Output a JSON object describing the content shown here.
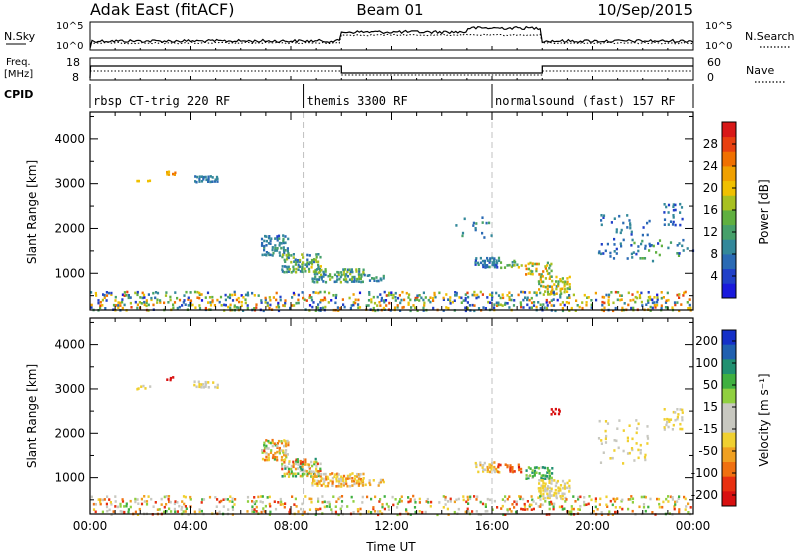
{
  "header": {
    "station": "Adak East (fitACF)",
    "beam": "Beam 01",
    "date": "10/Sep/2015"
  },
  "strip_panels": {
    "nsky": {
      "label": "N.Sky",
      "left_ticks": [
        "10^5",
        "10^0"
      ],
      "right_label": "N.Search",
      "right_ticks": [
        "10^5",
        "10^0"
      ]
    },
    "freq": {
      "label_line1": "Freq.",
      "label_line2": "[MHz]",
      "left_ticks": [
        "18",
        "8"
      ],
      "right_label": "Nave",
      "right_ticks": [
        "60",
        "0"
      ]
    },
    "cpid": {
      "label": "CPID",
      "segments": [
        {
          "start_hour": 0.0,
          "end_hour": 8.5,
          "label": "rbsp CT-trig 220 RF"
        },
        {
          "start_hour": 8.5,
          "end_hour": 16.0,
          "label": "themis 3300 RF"
        },
        {
          "start_hour": 16.0,
          "end_hour": 24.0,
          "label": "normalsound (fast) 157 RF"
        }
      ]
    }
  },
  "chart_data": [
    {
      "type": "heatmap",
      "name": "power",
      "ylabel": "Slant Range [km]",
      "xlim": [
        0,
        24
      ],
      "ylim": [
        180,
        4600
      ],
      "yticks": [
        "1000",
        "2000",
        "3000",
        "4000"
      ],
      "colorbar": {
        "label": "Power [dB]",
        "range": [
          0,
          32
        ],
        "ticks": [
          "4",
          "8",
          "12",
          "16",
          "20",
          "24",
          "28"
        ],
        "colors": [
          "#1a1adc",
          "#2040c8",
          "#2a6ab4",
          "#33889a",
          "#46a06a",
          "#60b040",
          "#a8c020",
          "#f0c000",
          "#f0a000",
          "#f07000",
          "#e84010",
          "#d81818"
        ]
      },
      "scatter_regions": [
        {
          "t0": 1.8,
          "t1": 2.4,
          "r0": 3020,
          "r1": 3120,
          "values": [
            18,
            21
          ],
          "density": 0.35
        },
        {
          "t0": 3.0,
          "t1": 3.4,
          "r0": 3220,
          "r1": 3320,
          "values": [
            21,
            25
          ],
          "density": 0.55
        },
        {
          "t0": 4.1,
          "t1": 5.1,
          "r0": 3060,
          "r1": 3220,
          "values": [
            6,
            10
          ],
          "density": 0.6
        },
        {
          "t0": 6.8,
          "t1": 7.9,
          "r0": 1420,
          "r1": 1900,
          "values": [
            5,
            12
          ],
          "density": 0.55
        },
        {
          "t0": 7.6,
          "t1": 9.2,
          "r0": 1050,
          "r1": 1480,
          "values": [
            6,
            19
          ],
          "density": 0.6
        },
        {
          "t0": 8.8,
          "t1": 10.9,
          "r0": 830,
          "r1": 1150,
          "values": [
            6,
            18
          ],
          "density": 0.65
        },
        {
          "t0": 10.8,
          "t1": 11.7,
          "r0": 850,
          "r1": 1020,
          "values": [
            5,
            12
          ],
          "density": 0.45
        },
        {
          "t0": 15.3,
          "t1": 16.3,
          "r0": 1150,
          "r1": 1400,
          "values": [
            4,
            11
          ],
          "density": 0.55
        },
        {
          "t0": 16.2,
          "t1": 17.2,
          "r0": 1150,
          "r1": 1350,
          "values": [
            8,
            20
          ],
          "density": 0.45
        },
        {
          "t0": 17.3,
          "t1": 18.4,
          "r0": 1000,
          "r1": 1290,
          "values": [
            12,
            26
          ],
          "density": 0.55
        },
        {
          "t0": 17.8,
          "t1": 19.1,
          "r0": 550,
          "r1": 1000,
          "values": [
            10,
            24
          ],
          "density": 0.55
        },
        {
          "t0": 20.2,
          "t1": 22.3,
          "r0": 1350,
          "r1": 2350,
          "values": [
            4,
            10
          ],
          "density": 0.12
        },
        {
          "t0": 22.8,
          "t1": 23.6,
          "r0": 2100,
          "r1": 2600,
          "values": [
            4,
            10
          ],
          "density": 0.3
        },
        {
          "t0": 21.5,
          "t1": 24.0,
          "r0": 1300,
          "r1": 1800,
          "values": [
            4,
            16
          ],
          "density": 0.12
        },
        {
          "t0": 14.5,
          "t1": 16.0,
          "r0": 1800,
          "r1": 2300,
          "values": [
            6,
            12
          ],
          "density": 0.08
        },
        {
          "t0": 0.0,
          "t1": 24.0,
          "r0": 190,
          "r1": 640,
          "values": [
            2,
            28
          ],
          "density": 0.28
        }
      ]
    },
    {
      "type": "heatmap",
      "name": "velocity",
      "xlabel": "Time UT",
      "ylabel": "Slant Range [km]",
      "xlim": [
        0,
        24
      ],
      "ylim": [
        180,
        4600
      ],
      "xticks": [
        "00:00",
        "04:00",
        "08:00",
        "12:00",
        "16:00",
        "20:00",
        "00:00"
      ],
      "yticks": [
        "1000",
        "2000",
        "3000",
        "4000"
      ],
      "colorbar": {
        "label": "Velocity [m s⁻¹]",
        "ticks": [
          "200",
          "100",
          "50",
          "15",
          "-15",
          "-50",
          "-100",
          "-200"
        ],
        "colors": [
          "#1530c8",
          "#2060b0",
          "#209070",
          "#40b040",
          "#90d040",
          "#c8c8c0",
          "#c8c8c0",
          "#f0d030",
          "#f0a020",
          "#f07010",
          "#e83010",
          "#d81010"
        ]
      },
      "scatter_regions": [
        {
          "t0": 1.8,
          "t1": 2.4,
          "r0": 3020,
          "r1": 3120,
          "values": [
            -10,
            10
          ],
          "density": 0.35
        },
        {
          "t0": 3.0,
          "t1": 3.4,
          "r0": 3220,
          "r1": 3320,
          "values": [
            -180,
            -120
          ],
          "density": 0.55
        },
        {
          "t0": 4.1,
          "t1": 5.1,
          "r0": 3060,
          "r1": 3220,
          "values": [
            -10,
            10
          ],
          "density": 0.6
        },
        {
          "t0": 6.8,
          "t1": 7.9,
          "r0": 1420,
          "r1": 1900,
          "values": [
            -60,
            60
          ],
          "density": 0.55
        },
        {
          "t0": 7.6,
          "t1": 9.2,
          "r0": 1050,
          "r1": 1480,
          "values": [
            -60,
            80
          ],
          "density": 0.6
        },
        {
          "t0": 8.8,
          "t1": 10.9,
          "r0": 830,
          "r1": 1150,
          "values": [
            -40,
            10
          ],
          "density": 0.65
        },
        {
          "t0": 10.8,
          "t1": 11.7,
          "r0": 850,
          "r1": 1020,
          "values": [
            -30,
            10
          ],
          "density": 0.45
        },
        {
          "t0": 15.3,
          "t1": 16.3,
          "r0": 1150,
          "r1": 1400,
          "values": [
            -30,
            20
          ],
          "density": 0.55
        },
        {
          "t0": 16.2,
          "t1": 17.2,
          "r0": 1150,
          "r1": 1350,
          "values": [
            -80,
            -30
          ],
          "density": 0.45
        },
        {
          "t0": 17.3,
          "t1": 18.4,
          "r0": 1000,
          "r1": 1290,
          "values": [
            20,
            90
          ],
          "density": 0.55
        },
        {
          "t0": 17.8,
          "t1": 19.1,
          "r0": 550,
          "r1": 1000,
          "values": [
            -10,
            10
          ],
          "density": 0.55
        },
        {
          "t0": 18.3,
          "t1": 18.7,
          "r0": 2450,
          "r1": 2600,
          "values": [
            -180,
            -120
          ],
          "density": 0.4
        },
        {
          "t0": 20.2,
          "t1": 22.3,
          "r0": 1350,
          "r1": 2350,
          "values": [
            -10,
            10
          ],
          "density": 0.12
        },
        {
          "t0": 22.8,
          "t1": 23.6,
          "r0": 2100,
          "r1": 2600,
          "values": [
            -10,
            10
          ],
          "density": 0.3
        },
        {
          "t0": 0.0,
          "t1": 24.0,
          "r0": 190,
          "r1": 640,
          "values": [
            -70,
            70
          ],
          "density": 0.22
        }
      ]
    }
  ],
  "colors": {
    "axis": "#000000",
    "guide_line": "#c0c0c0"
  }
}
